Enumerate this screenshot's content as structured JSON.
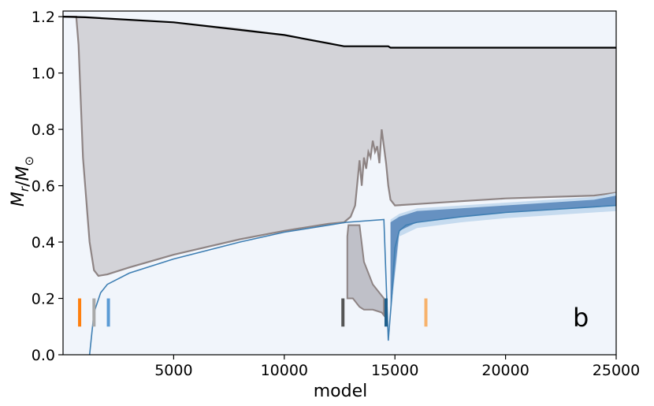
{
  "chart_data": {
    "type": "area",
    "xlabel": "model",
    "ylabel": "M_r/M_⊙",
    "panel_label": "b",
    "xlim": [
      0,
      25000
    ],
    "ylim": [
      0,
      1.22
    ],
    "x_ticks": [
      5000,
      10000,
      15000,
      20000,
      25000
    ],
    "y_ticks": [
      0.0,
      0.2,
      0.4,
      0.6,
      0.8,
      1.0,
      1.2
    ],
    "x_tick_labels": [
      "5000",
      "10000",
      "15000",
      "20000",
      "25000"
    ],
    "y_tick_labels": [
      "0.0",
      "0.2",
      "0.4",
      "0.6",
      "0.8",
      "1.0",
      "1.2"
    ],
    "colors": {
      "background": "#f1f5fb",
      "convective": "#d3d3d8",
      "convective_edge": "#8e8484",
      "total_mass_line": "#000000",
      "core_line": "#3f7fb3",
      "core_fill": "#5b88bb",
      "core_fill_light": "#c6dbef"
    },
    "total_mass": {
      "x": [
        0,
        1000,
        5000,
        10000,
        12700,
        14700,
        14800,
        25000
      ],
      "y": [
        1.2,
        1.198,
        1.18,
        1.135,
        1.095,
        1.095,
        1.09,
        1.09
      ]
    },
    "envelope_convective_zone": {
      "x": [
        0,
        300,
        500,
        600,
        700,
        900,
        1200,
        1400,
        1600,
        2000,
        3000,
        5000,
        8000,
        10000,
        12000,
        12700,
        13000,
        13200,
        13400,
        13500,
        13600,
        13700,
        13800,
        13900,
        14000,
        14100,
        14200,
        14300,
        14400,
        14500,
        14600,
        14700,
        14800,
        15000,
        16000,
        18000,
        20000,
        22000,
        24000,
        25000
      ],
      "upper": [
        1.2,
        1.2,
        1.2,
        1.2,
        1.198,
        1.197,
        1.196,
        1.195,
        1.194,
        1.192,
        1.188,
        1.18,
        1.16,
        1.135,
        1.11,
        1.095,
        1.095,
        1.095,
        1.095,
        1.095,
        1.095,
        1.095,
        1.095,
        1.095,
        1.095,
        1.095,
        1.095,
        1.095,
        1.095,
        1.095,
        1.095,
        1.095,
        1.09,
        1.09,
        1.09,
        1.09,
        1.09,
        1.09,
        1.09,
        1.09
      ],
      "lower": [
        1.2,
        1.2,
        1.2,
        1.2,
        1.1,
        0.7,
        0.4,
        0.3,
        0.28,
        0.285,
        0.31,
        0.355,
        0.41,
        0.44,
        0.465,
        0.47,
        0.49,
        0.53,
        0.69,
        0.6,
        0.7,
        0.66,
        0.72,
        0.7,
        0.76,
        0.72,
        0.74,
        0.68,
        0.8,
        0.74,
        0.68,
        0.6,
        0.55,
        0.53,
        0.535,
        0.545,
        0.555,
        0.56,
        0.565,
        0.575
      ]
    },
    "inner_convective_zone": {
      "x": [
        12850,
        12900,
        13100,
        13200,
        13300,
        13400,
        13600,
        14000,
        14400,
        14500
      ],
      "upper": [
        0.42,
        0.46,
        0.46,
        0.46,
        0.46,
        0.46,
        0.33,
        0.25,
        0.21,
        0.2
      ],
      "lower": [
        0.2,
        0.2,
        0.2,
        0.19,
        0.18,
        0.17,
        0.16,
        0.16,
        0.15,
        0.14
      ]
    },
    "core_boundary": {
      "x": [
        1200,
        1400,
        1700,
        2000,
        3000,
        5000,
        8000,
        10000,
        12000,
        12800,
        14500,
        14700,
        14850,
        15000,
        15200,
        15500,
        16000,
        18000,
        20000,
        22000,
        24000,
        25000
      ],
      "y": [
        0.0,
        0.15,
        0.22,
        0.25,
        0.29,
        0.34,
        0.4,
        0.435,
        0.46,
        0.47,
        0.48,
        0.05,
        0.2,
        0.38,
        0.44,
        0.46,
        0.47,
        0.49,
        0.505,
        0.515,
        0.525,
        0.53
      ]
    },
    "burning_region_upper": {
      "x": [
        14800,
        15200,
        16000,
        18000,
        20000,
        22000,
        24000,
        25000
      ],
      "y": [
        0.47,
        0.49,
        0.51,
        0.52,
        0.53,
        0.54,
        0.55,
        0.565
      ]
    },
    "markers": [
      {
        "x": 750,
        "color": "#ff7f0e"
      },
      {
        "x": 1400,
        "color": "#a9a9a9"
      },
      {
        "x": 2050,
        "color": "#5b9bd5"
      },
      {
        "x": 12650,
        "color": "#555555"
      },
      {
        "x": 14600,
        "color": "#1f5f8b"
      },
      {
        "x": 16400,
        "color": "#f7b26c"
      }
    ]
  }
}
